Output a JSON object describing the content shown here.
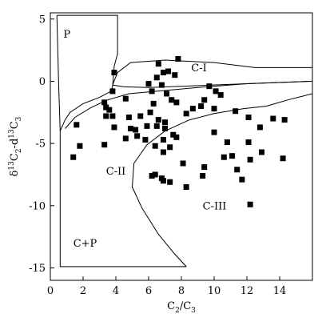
{
  "chart_data": {
    "type": "scatter",
    "title": "",
    "xlabel": "C2/C3",
    "ylabel": "δ13C2-d13C3",
    "xlim": [
      0,
      16
    ],
    "ylim": [
      -16,
      5.5
    ],
    "x_ticks": [
      0,
      2,
      4,
      6,
      8,
      10,
      12,
      14
    ],
    "y_ticks": [
      5,
      0,
      -5,
      -10,
      -15
    ],
    "grid": false,
    "legend": "none",
    "marker_shape": "square",
    "marker_color": "#000000",
    "regions": [
      {
        "label": "P",
        "label_pos": [
          0.8,
          3.5
        ],
        "boundary": [
          [
            0.4,
            5.3
          ],
          [
            4.1,
            5.3
          ],
          [
            4.1,
            2.2
          ],
          [
            3.9,
            1.2
          ],
          [
            3.8,
            -0.4
          ],
          [
            3.7,
            -0.8
          ],
          [
            3.0,
            -1.3
          ],
          [
            2.0,
            -1.8
          ],
          [
            1.2,
            -2.5
          ],
          [
            0.9,
            -3.1
          ],
          [
            0.6,
            -4.0
          ],
          [
            0.5,
            0
          ],
          [
            0.4,
            5.3
          ]
        ]
      },
      {
        "label": "C-I",
        "label_pos": [
          8.6,
          0.8
        ],
        "boundary": [
          [
            3.8,
            -0.3
          ],
          [
            4.1,
            0.7
          ],
          [
            4.9,
            1.5
          ],
          [
            7.0,
            1.7
          ],
          [
            10.0,
            1.5
          ],
          [
            12.5,
            1.1
          ],
          [
            16.0,
            1.1
          ],
          [
            16.0,
            0.0
          ],
          [
            12.0,
            -0.2
          ],
          [
            8.0,
            -0.4
          ],
          [
            6.0,
            -0.5
          ],
          [
            4.5,
            -0.45
          ],
          [
            3.8,
            -0.3
          ]
        ]
      },
      {
        "label": "C-II",
        "label_pos": [
          3.4,
          -7.5
        ],
        "boundary": [
          [
            0.9,
            -3.8
          ],
          [
            1.5,
            -2.9
          ],
          [
            2.5,
            -2.1
          ],
          [
            3.5,
            -1.5
          ],
          [
            4.8,
            -1.0
          ],
          [
            6.5,
            -0.8
          ],
          [
            9.0,
            -0.5
          ],
          [
            12.0,
            -0.2
          ],
          [
            16.0,
            0.0
          ]
        ]
      },
      {
        "label": "C-III",
        "label_pos": [
          9.3,
          -10.3
        ],
        "boundary": [
          [
            8.3,
            -14.9
          ],
          [
            7.6,
            -13.9
          ],
          [
            6.6,
            -12.3
          ],
          [
            5.6,
            -10.2
          ],
          [
            5.0,
            -8.5
          ],
          [
            5.1,
            -6.6
          ],
          [
            5.9,
            -5.1
          ],
          [
            7.0,
            -4.0
          ],
          [
            8.5,
            -3.1
          ],
          [
            10.0,
            -2.6
          ],
          [
            11.8,
            -2.2
          ],
          [
            13.2,
            -2.0
          ],
          [
            14.5,
            -1.5
          ],
          [
            15.4,
            -1.2
          ],
          [
            16.0,
            -1.0
          ]
        ]
      },
      {
        "label": "C+P",
        "label_pos": [
          1.4,
          -13.3
        ],
        "boundary": [
          [
            0.6,
            -4.0
          ],
          [
            0.6,
            -14.9
          ],
          [
            8.3,
            -14.9
          ]
        ]
      }
    ],
    "series": [
      {
        "points": [
          [
            1.6,
            -3.5
          ],
          [
            1.8,
            -5.2
          ],
          [
            1.4,
            -6.1
          ],
          [
            3.4,
            -2.1
          ],
          [
            3.3,
            -1.7
          ],
          [
            3.9,
            0.7
          ],
          [
            3.8,
            -0.8
          ],
          [
            3.6,
            -2.3
          ],
          [
            3.4,
            -2.8
          ],
          [
            3.8,
            -2.8
          ],
          [
            3.9,
            -3.7
          ],
          [
            3.3,
            -5.1
          ],
          [
            4.6,
            -1.4
          ],
          [
            4.8,
            -2.9
          ],
          [
            5.5,
            -2.8
          ],
          [
            4.9,
            -3.8
          ],
          [
            5.2,
            -3.9
          ],
          [
            5.9,
            -3.6
          ],
          [
            5.3,
            -4.4
          ],
          [
            4.6,
            -4.6
          ],
          [
            6.0,
            -0.2
          ],
          [
            6.5,
            0.3
          ],
          [
            6.6,
            1.4
          ],
          [
            6.9,
            0.7
          ],
          [
            7.2,
            0.8
          ],
          [
            7.8,
            1.8
          ],
          [
            7.6,
            0.5
          ],
          [
            6.2,
            -0.8
          ],
          [
            6.8,
            -0.3
          ],
          [
            7.1,
            -1.0
          ],
          [
            7.7,
            -1.7
          ],
          [
            8.3,
            -2.6
          ],
          [
            7.4,
            -1.5
          ],
          [
            6.3,
            -1.8
          ],
          [
            6.1,
            -2.5
          ],
          [
            6.6,
            -3.1
          ],
          [
            7.0,
            -3.3
          ],
          [
            6.5,
            -3.6
          ],
          [
            7.0,
            -3.8
          ],
          [
            7.5,
            -4.3
          ],
          [
            6.9,
            -4.7
          ],
          [
            6.4,
            -5.2
          ],
          [
            5.8,
            -4.7
          ],
          [
            9.7,
            -0.4
          ],
          [
            10.1,
            -0.8
          ],
          [
            10.4,
            -1.1
          ],
          [
            9.4,
            -1.5
          ],
          [
            9.2,
            -2.0
          ],
          [
            8.7,
            -2.2
          ],
          [
            10.0,
            -2.2
          ],
          [
            11.3,
            -2.4
          ],
          [
            12.1,
            -2.9
          ],
          [
            12.8,
            -3.7
          ],
          [
            13.6,
            -3.0
          ],
          [
            14.3,
            -3.1
          ],
          [
            10.0,
            -4.1
          ],
          [
            10.8,
            -4.9
          ],
          [
            12.1,
            -4.9
          ],
          [
            11.1,
            -6.0
          ],
          [
            12.2,
            -6.3
          ],
          [
            10.6,
            -6.1
          ],
          [
            12.9,
            -5.7
          ],
          [
            14.2,
            -6.2
          ],
          [
            11.4,
            -7.1
          ],
          [
            11.7,
            -7.9
          ],
          [
            12.2,
            -9.9
          ],
          [
            9.4,
            -6.9
          ],
          [
            9.3,
            -7.6
          ],
          [
            8.3,
            -8.5
          ],
          [
            7.3,
            -8.1
          ],
          [
            6.4,
            -7.5
          ],
          [
            6.8,
            -7.8
          ],
          [
            6.9,
            -8.0
          ],
          [
            6.2,
            -7.6
          ],
          [
            7.3,
            -5.3
          ],
          [
            6.9,
            -5.7
          ],
          [
            8.1,
            -6.6
          ],
          [
            7.7,
            -4.5
          ]
        ]
      }
    ]
  }
}
